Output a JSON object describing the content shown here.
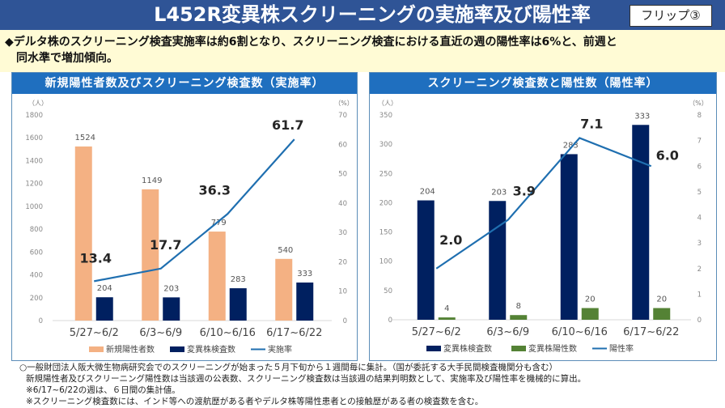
{
  "header": {
    "title": "L452R変異株スクリーニングの実施率及び陽性率",
    "badge": "フリップ③"
  },
  "summary": {
    "line1": "◆デルタ株のスクリーニング検査実施率は約6割となり、スクリーニング検査における直近の週の陽性率は6%と、前週と",
    "line2": "　同水準で増加傾向。"
  },
  "colors": {
    "title_bar": "#2f5496",
    "panel_header": "#1f6fbf",
    "new_cases_bar": "#f4b183",
    "screening_bar": "#002060",
    "positive_bar": "#548235",
    "line": "#1f6fb0",
    "summary_bg": "#fffbd5"
  },
  "chart_data": [
    {
      "type": "bar",
      "title": "新規陽性者数及びスクリーニング検査数（実施率）",
      "categories": [
        "5/27~6/2",
        "6/3~6/9",
        "6/10~6/16",
        "6/17~6/22"
      ],
      "ylabel": "（人）",
      "y2label": "（%）",
      "ylim": [
        0,
        1800
      ],
      "yticks": [
        0,
        200,
        400,
        600,
        800,
        1000,
        1200,
        1400,
        1600,
        1800
      ],
      "y2lim": [
        0,
        70
      ],
      "y2ticks": [
        0,
        10,
        20,
        30,
        40,
        50,
        60,
        70
      ],
      "series": [
        {
          "name": "新規陽性者数",
          "kind": "bar",
          "axis": "left",
          "values": [
            1524,
            1149,
            779,
            540
          ]
        },
        {
          "name": "変異株検査数",
          "kind": "bar",
          "axis": "left",
          "values": [
            204,
            203,
            283,
            333
          ]
        },
        {
          "name": "実施率",
          "kind": "line",
          "axis": "right",
          "values": [
            13.4,
            17.7,
            36.3,
            61.7
          ]
        }
      ],
      "line_labels": [
        "13.4",
        "17.7",
        "36.3",
        "61.7"
      ],
      "legend": [
        "新規陽性者数",
        "変異株検査数",
        "実施率"
      ],
      "legend_position": "bottom",
      "grid": false
    },
    {
      "type": "bar",
      "title": "スクリーニング検査数と陽性数（陽性率）",
      "categories": [
        "5/27~6/2",
        "6/3~6/9",
        "6/10~6/16",
        "6/17~6/22"
      ],
      "ylabel": "（人）",
      "y2label": "（%）",
      "ylim": [
        0,
        350
      ],
      "yticks": [
        0,
        50,
        100,
        150,
        200,
        250,
        300,
        350
      ],
      "y2lim": [
        0,
        8
      ],
      "y2ticks": [
        0,
        1,
        2,
        3,
        4,
        5,
        6,
        7,
        8
      ],
      "series": [
        {
          "name": "変異株検査数",
          "kind": "bar",
          "axis": "left",
          "values": [
            204,
            203,
            283,
            333
          ]
        },
        {
          "name": "変異株陽性数",
          "kind": "bar",
          "axis": "left",
          "values": [
            4,
            8,
            20,
            20
          ]
        },
        {
          "name": "陽性率",
          "kind": "line",
          "axis": "right",
          "values": [
            2.0,
            3.9,
            7.1,
            6.0
          ]
        }
      ],
      "line_labels": [
        "2.0",
        "3.9",
        "7.1",
        "6.0"
      ],
      "legend": [
        "変異株検査数",
        "変異株陽性数",
        "陽性率"
      ],
      "legend_position": "bottom",
      "grid": false
    }
  ],
  "notes": [
    "○一般財団法人阪大微生物病研究会でのスクリーニングが始まった５月下旬から１週間毎に集計。（国が委託する大手民間検査機関分も含む）",
    "新規陽性者及びスクリーニング陽性数は当該週の公表数、スクリーニング検査数は当該週の結果判明数として、実施率及び陽性率を機械的に算出。",
    "※6/17~6/22の週は、６日間の集計値。",
    "※スクリーニング検査数には、インド等への渡航歴がある者やデルタ株等陽性患者との接触歴がある者の検査数を含む。"
  ]
}
